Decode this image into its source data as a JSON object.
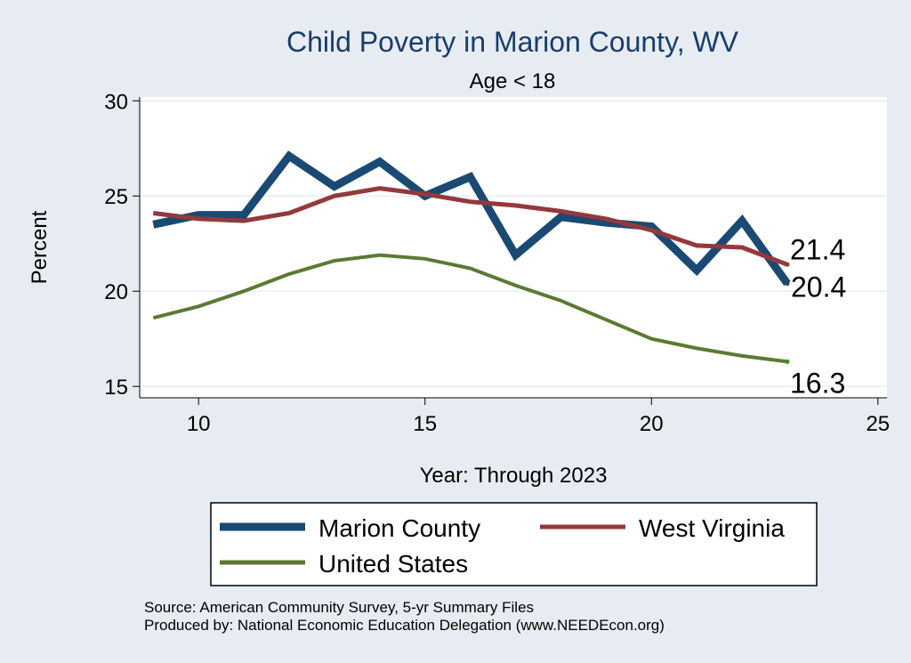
{
  "chart_data": {
    "type": "line",
    "title": "Child Poverty in Marion County, WV",
    "subtitle": "Age < 18",
    "xlabel": "Year: Through 2023",
    "ylabel": "Percent",
    "xlim": [
      8.7,
      25.2
    ],
    "ylim": [
      14.4,
      30.2
    ],
    "xticks": [
      "10",
      "15",
      "20",
      "25"
    ],
    "yticks": [
      "15",
      "20",
      "25",
      "30"
    ],
    "grid": true,
    "legend_position": "bottom",
    "x": [
      9,
      10,
      11,
      12,
      13,
      14,
      15,
      16,
      17,
      18,
      19,
      20,
      21,
      22,
      23
    ],
    "series": [
      {
        "name": "Marion County",
        "color": "#1a4a73",
        "values": [
          23.5,
          24.0,
          24.0,
          27.1,
          25.5,
          26.8,
          25.0,
          26.0,
          21.9,
          23.9,
          23.6,
          23.4,
          21.1,
          23.7,
          20.4
        ],
        "end_label": "20.4"
      },
      {
        "name": "West Virginia",
        "color": "#93393c",
        "values": [
          24.1,
          23.8,
          23.7,
          24.1,
          25.0,
          25.4,
          25.1,
          24.7,
          24.5,
          24.2,
          23.8,
          23.2,
          22.4,
          22.3,
          21.4
        ],
        "end_label": "21.4"
      },
      {
        "name": "United States",
        "color": "#5b7a32",
        "values": [
          18.6,
          19.2,
          20.0,
          20.9,
          21.6,
          21.9,
          21.7,
          21.2,
          20.3,
          19.5,
          18.5,
          17.5,
          17.0,
          16.6,
          16.3
        ],
        "end_label": "16.3"
      }
    ],
    "notes": [
      "Source: American Community Survey, 5-yr Summary Files",
      "Produced by: National Economic Education Delegation (www.NEEDEcon.org)"
    ]
  }
}
